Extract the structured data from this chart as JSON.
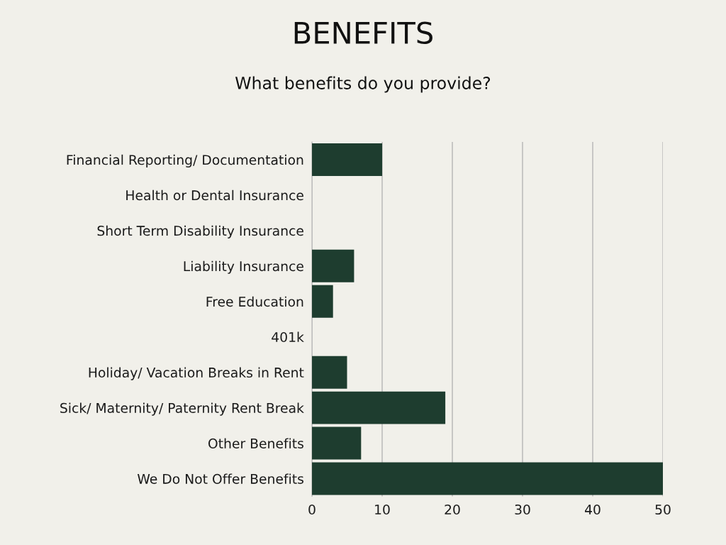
{
  "chart_data": {
    "type": "bar",
    "orientation": "horizontal",
    "title": "BENEFITS",
    "subtitle": "What benefits do you provide?",
    "categories": [
      "Financial Reporting/ Documentation",
      "Health or Dental Insurance",
      "Short Term Disability Insurance",
      "Liability Insurance",
      "Free Education",
      "401k",
      "Holiday/ Vacation Breaks in Rent",
      "Sick/ Maternity/ Paternity Rent Break",
      "Other Benefits",
      "We Do Not Offer Benefits"
    ],
    "values": [
      10,
      0,
      0,
      6,
      3,
      0,
      5,
      19,
      7,
      50
    ],
    "color": "#1e3d2f",
    "xlim": [
      0,
      50
    ],
    "xticks": [
      0,
      10,
      20,
      30,
      40,
      50
    ],
    "grid": "x"
  }
}
